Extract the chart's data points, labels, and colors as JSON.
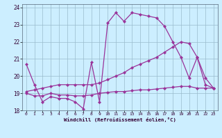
{
  "xlabel": "Windchill (Refroidissement éolien,°C)",
  "background_color": "#cceeff",
  "line_color": "#993399",
  "xlim": [
    -0.5,
    23.5
  ],
  "ylim": [
    18,
    24.2
  ],
  "xticks": [
    0,
    1,
    2,
    3,
    4,
    5,
    6,
    7,
    8,
    9,
    10,
    11,
    12,
    13,
    14,
    15,
    16,
    17,
    18,
    19,
    20,
    21,
    22,
    23
  ],
  "yticks": [
    18,
    19,
    20,
    21,
    22,
    23,
    24
  ],
  "line1_x": [
    0,
    1,
    2,
    3,
    4,
    5,
    6,
    7,
    8,
    9,
    10,
    11,
    12,
    13,
    14,
    15,
    16,
    17,
    18,
    19,
    20,
    21,
    22,
    23
  ],
  "line1_y": [
    20.7,
    19.5,
    18.5,
    18.8,
    18.7,
    18.7,
    18.5,
    18.1,
    20.8,
    18.5,
    23.1,
    23.7,
    23.2,
    23.7,
    23.6,
    23.5,
    23.4,
    22.9,
    22.0,
    21.1,
    19.9,
    21.1,
    19.5,
    19.3
  ],
  "line2_x": [
    0,
    1,
    2,
    3,
    4,
    5,
    6,
    7,
    8,
    9,
    10,
    11,
    12,
    13,
    14,
    15,
    16,
    17,
    18,
    19,
    20,
    21,
    22,
    23
  ],
  "line2_y": [
    19.1,
    19.2,
    19.3,
    19.4,
    19.5,
    19.5,
    19.5,
    19.5,
    19.5,
    19.6,
    19.8,
    20.0,
    20.2,
    20.5,
    20.7,
    20.9,
    21.1,
    21.4,
    21.7,
    22.0,
    21.9,
    21.1,
    19.9,
    19.3
  ],
  "line3_x": [
    0,
    1,
    2,
    3,
    4,
    5,
    6,
    7,
    8,
    9,
    10,
    11,
    12,
    13,
    14,
    15,
    16,
    17,
    18,
    19,
    20,
    21,
    22,
    23
  ],
  "line3_y": [
    19.0,
    18.85,
    18.85,
    19.0,
    18.9,
    18.9,
    18.85,
    18.85,
    18.9,
    19.0,
    19.05,
    19.1,
    19.1,
    19.15,
    19.2,
    19.2,
    19.25,
    19.3,
    19.35,
    19.4,
    19.4,
    19.3,
    19.3,
    19.3
  ]
}
